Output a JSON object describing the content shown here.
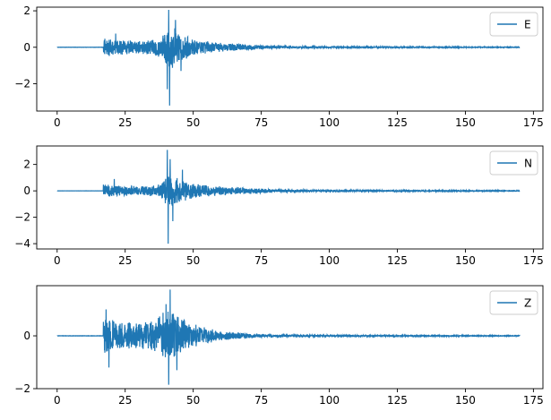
{
  "figure": {
    "background": "#ffffff"
  },
  "chart_data": [
    {
      "type": "line",
      "xlim": [
        -7.5,
        178.5
      ],
      "ylim": [
        -3.5,
        2.2
      ],
      "xticks": [
        0,
        25,
        50,
        75,
        100,
        125,
        150,
        175
      ],
      "yticks": [
        -2,
        0,
        2
      ],
      "x_range": [
        0,
        170
      ],
      "legend": "top-right",
      "grid": false,
      "series": [
        {
          "name": "E",
          "color": "#1f77b4",
          "profile": {
            "quiet_until": 17,
            "onset": 17.5,
            "segments": [
              [
                17.5,
                0.55
              ],
              [
                20,
                0.45
              ],
              [
                30,
                0.35
              ],
              [
                38,
                0.55
              ],
              [
                40,
                1.0
              ],
              [
                42,
                1.3
              ],
              [
                45,
                0.8
              ],
              [
                50,
                0.45
              ],
              [
                60,
                0.25
              ],
              [
                80,
                0.08
              ],
              [
                100,
                0.04
              ],
              [
                170,
                0.02
              ]
            ],
            "spikes": [
              [
                41,
                2.05
              ],
              [
                41.3,
                -3.2
              ],
              [
                40.5,
                -2.3
              ],
              [
                21.5,
                0.75
              ],
              [
                43.5,
                1.5
              ],
              [
                45.5,
                -1.3
              ]
            ]
          }
        }
      ]
    },
    {
      "type": "line",
      "xlim": [
        -7.5,
        178.5
      ],
      "ylim": [
        -4.4,
        3.4
      ],
      "xticks": [
        0,
        25,
        50,
        75,
        100,
        125,
        150,
        175
      ],
      "yticks": [
        -4,
        -2,
        0,
        2
      ],
      "x_range": [
        0,
        170
      ],
      "legend": "top-right",
      "grid": false,
      "series": [
        {
          "name": "N",
          "color": "#1f77b4",
          "profile": {
            "quiet_until": 17,
            "onset": 17.5,
            "segments": [
              [
                17.5,
                0.5
              ],
              [
                20,
                0.45
              ],
              [
                30,
                0.35
              ],
              [
                38,
                0.5
              ],
              [
                40,
                1.2
              ],
              [
                42,
                1.5
              ],
              [
                45,
                0.9
              ],
              [
                50,
                0.55
              ],
              [
                60,
                0.35
              ],
              [
                70,
                0.25
              ],
              [
                80,
                0.12
              ],
              [
                100,
                0.06
              ],
              [
                170,
                0.03
              ]
            ],
            "spikes": [
              [
                40.5,
                3.1
              ],
              [
                40.8,
                -4.0
              ],
              [
                41.5,
                2.4
              ],
              [
                42.5,
                -2.3
              ],
              [
                46,
                1.6
              ],
              [
                21,
                0.9
              ]
            ]
          }
        }
      ]
    },
    {
      "type": "line",
      "xlim": [
        -7.5,
        178.5
      ],
      "ylim": [
        -2.0,
        1.9
      ],
      "xticks": [
        0,
        25,
        50,
        75,
        100,
        125,
        150,
        175
      ],
      "yticks": [
        -2,
        0
      ],
      "x_range": [
        0,
        170
      ],
      "legend": "top-right",
      "grid": false,
      "series": [
        {
          "name": "Z",
          "color": "#1f77b4",
          "profile": {
            "quiet_until": 17,
            "onset": 17,
            "segments": [
              [
                17,
                0.75
              ],
              [
                19,
                0.8
              ],
              [
                22,
                0.55
              ],
              [
                30,
                0.5
              ],
              [
                36,
                0.6
              ],
              [
                40,
                1.0
              ],
              [
                42,
                1.1
              ],
              [
                45,
                0.7
              ],
              [
                50,
                0.45
              ],
              [
                60,
                0.18
              ],
              [
                75,
                0.06
              ],
              [
                100,
                0.03
              ],
              [
                170,
                0.015
              ]
            ],
            "spikes": [
              [
                41.5,
                1.75
              ],
              [
                41.0,
                -1.85
              ],
              [
                18,
                1.0
              ],
              [
                19,
                -1.2
              ],
              [
                40,
                1.2
              ],
              [
                44,
                -1.3
              ]
            ]
          }
        }
      ]
    }
  ]
}
